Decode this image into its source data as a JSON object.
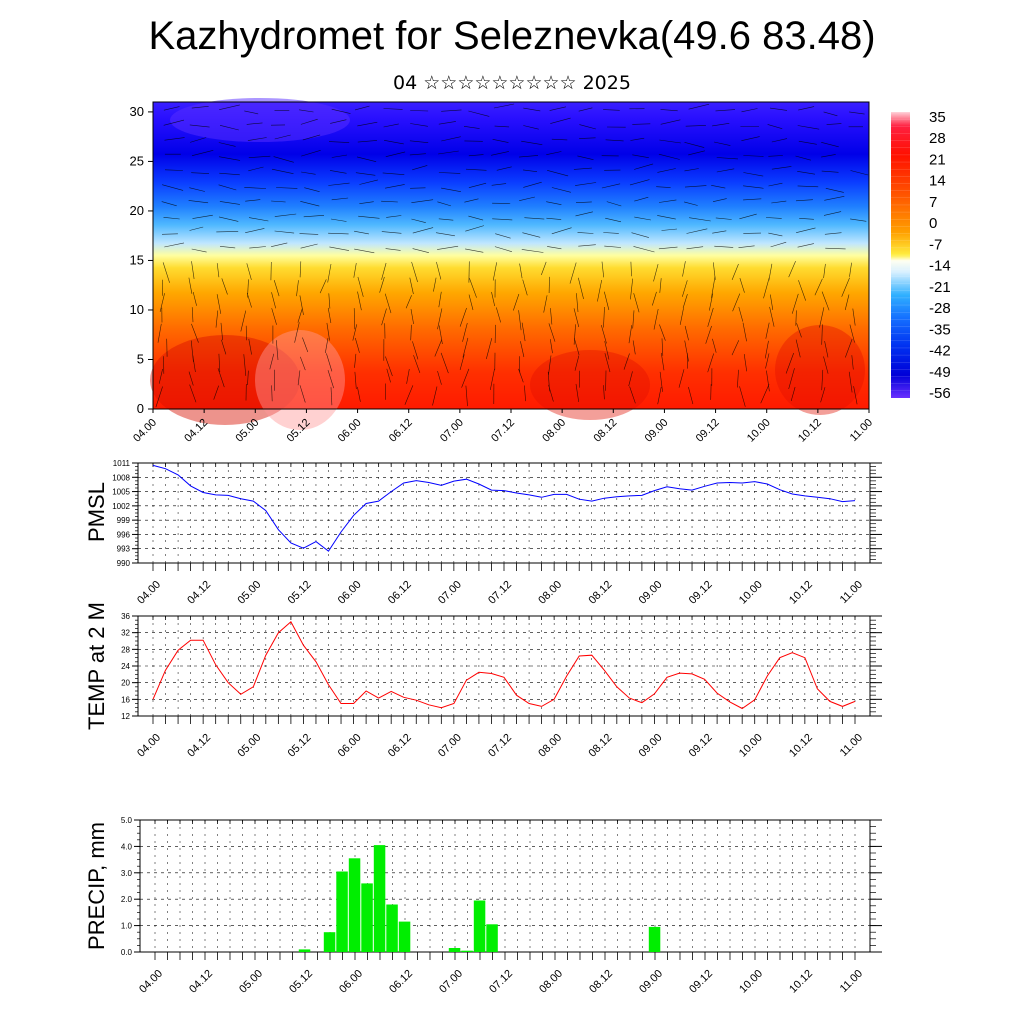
{
  "title": "Kazhydromet for Seleznevka(49.6 83.48)",
  "subtitle": "04 ☆☆☆☆☆☆☆☆☆ 2025",
  "time_labels": [
    "04.00",
    "04.12",
    "05.00",
    "05.12",
    "06.00",
    "06.12",
    "07.00",
    "07.12",
    "08.00",
    "08.12",
    "09.00",
    "09.12",
    "10.00",
    "10.12",
    "11.00"
  ],
  "colorbar": {
    "labels": [
      "35",
      "28",
      "21",
      "14",
      "7",
      "0",
      "-7",
      "-14",
      "-21",
      "-28",
      "-35",
      "-42",
      "-49",
      "-56"
    ]
  },
  "chart_data": [
    {
      "type": "heatmap",
      "title": "Kazhydromet for Seleznevka(49.6 83.48)",
      "subtitle": "04 ☆☆☆☆☆☆☆☆☆ 2025",
      "x": [
        "04.00",
        "04.12",
        "05.00",
        "05.12",
        "06.00",
        "06.12",
        "07.00",
        "07.12",
        "08.00",
        "08.12",
        "09.00",
        "09.12",
        "10.00",
        "10.12",
        "11.00"
      ],
      "yticks": [
        0,
        5,
        10,
        15,
        20,
        25,
        30
      ],
      "ylim": [
        0,
        31
      ],
      "color_levels": [
        35,
        28,
        21,
        14,
        7,
        0,
        -7,
        -14,
        -21,
        -28,
        -35,
        -42,
        -49,
        -56
      ],
      "overlay": "wind barbs"
    },
    {
      "type": "line",
      "ylabel": "PMSL",
      "color": "#0000ff",
      "ylim": [
        990,
        1011
      ],
      "yticks": [
        990,
        993,
        996,
        999,
        1002,
        1005,
        1008,
        1011
      ],
      "x": [
        "04.00",
        "04.03",
        "04.06",
        "04.09",
        "04.12",
        "04.15",
        "04.18",
        "04.21",
        "05.00",
        "05.03",
        "05.06",
        "05.09",
        "05.12",
        "05.15",
        "05.18",
        "05.21",
        "06.00",
        "06.03",
        "06.06",
        "06.09",
        "06.12",
        "06.15",
        "06.18",
        "06.21",
        "07.00",
        "07.03",
        "07.06",
        "07.09",
        "07.12",
        "07.15",
        "07.18",
        "07.21",
        "08.00",
        "08.03",
        "08.06",
        "08.09",
        "08.12",
        "08.15",
        "08.18",
        "08.21",
        "09.00",
        "09.03",
        "09.06",
        "09.09",
        "09.12",
        "09.15",
        "09.18",
        "09.21",
        "10.00",
        "10.03",
        "10.06",
        "10.09",
        "10.12",
        "10.15",
        "10.18",
        "10.21",
        "11.00"
      ],
      "values": [
        1010.5,
        1009.8,
        1008.5,
        1006.2,
        1004.8,
        1004.3,
        1004.2,
        1003.5,
        1003.0,
        1001.0,
        997.0,
        994.2,
        993.1,
        994.5,
        992.5,
        996.5,
        1000.0,
        1002.5,
        1003.0,
        1005.0,
        1006.8,
        1007.3,
        1006.9,
        1006.3,
        1007.2,
        1007.6,
        1006.6,
        1005.3,
        1005.2,
        1004.7,
        1004.3,
        1003.8,
        1004.4,
        1004.4,
        1003.4,
        1003.0,
        1003.6,
        1003.9,
        1004.1,
        1004.2,
        1005.2,
        1006.0,
        1005.6,
        1005.3,
        1006.1,
        1006.8,
        1006.9,
        1006.8,
        1007.1,
        1006.6,
        1005.4,
        1004.5,
        1004.1,
        1003.8,
        1003.5,
        1002.9,
        1003.1
      ]
    },
    {
      "type": "line",
      "ylabel": "TEMP at 2 M",
      "color": "#ff0000",
      "ylim": [
        12,
        36
      ],
      "yticks": [
        12,
        16,
        20,
        24,
        28,
        32,
        36
      ],
      "x": [
        "04.00",
        "04.03",
        "04.06",
        "04.09",
        "04.12",
        "04.15",
        "04.18",
        "04.21",
        "05.00",
        "05.03",
        "05.06",
        "05.09",
        "05.12",
        "05.15",
        "05.18",
        "05.21",
        "06.00",
        "06.03",
        "06.06",
        "06.09",
        "06.12",
        "06.15",
        "06.18",
        "06.21",
        "07.00",
        "07.03",
        "07.06",
        "07.09",
        "07.12",
        "07.15",
        "07.18",
        "07.21",
        "08.00",
        "08.03",
        "08.06",
        "08.09",
        "08.12",
        "08.15",
        "08.18",
        "08.21",
        "09.00",
        "09.03",
        "09.06",
        "09.09",
        "09.12",
        "09.15",
        "09.18",
        "09.21",
        "10.00",
        "10.03",
        "10.06",
        "10.09",
        "10.12",
        "10.15",
        "10.18",
        "10.21",
        "11.00"
      ],
      "values": [
        16.0,
        23.0,
        27.8,
        30.2,
        30.2,
        24.3,
        20.0,
        17.2,
        19.0,
        26.6,
        32.0,
        34.6,
        29.0,
        25.0,
        19.5,
        15.0,
        15.0,
        18.0,
        16.3,
        17.9,
        16.5,
        15.8,
        14.7,
        14.0,
        15.0,
        20.6,
        22.5,
        22.2,
        21.3,
        17.0,
        15.0,
        14.3,
        16.0,
        21.6,
        26.4,
        26.6,
        23.0,
        19.0,
        16.3,
        15.2,
        17.3,
        21.3,
        22.3,
        22.1,
        20.8,
        17.5,
        15.4,
        13.8,
        15.9,
        21.6,
        26.0,
        27.2,
        26.0,
        18.5,
        15.5,
        14.3,
        15.5
      ]
    },
    {
      "type": "bar",
      "ylabel": "PRECIP, mm",
      "color": "#00ee00",
      "ylim": [
        0,
        5
      ],
      "yticks": [
        "0.0",
        "1.0",
        "2.0",
        "3.0",
        "4.0",
        "5.0"
      ],
      "x": [
        "04.00",
        "04.03",
        "04.06",
        "04.09",
        "04.12",
        "04.15",
        "04.18",
        "04.21",
        "05.00",
        "05.03",
        "05.06",
        "05.09",
        "05.12",
        "05.15",
        "05.18",
        "05.21",
        "06.00",
        "06.03",
        "06.06",
        "06.09",
        "06.12",
        "06.15",
        "06.18",
        "06.21",
        "07.00",
        "07.03",
        "07.06",
        "07.09",
        "07.12",
        "07.15",
        "07.18",
        "07.21",
        "08.00",
        "08.03",
        "08.06",
        "08.09",
        "08.12",
        "08.15",
        "08.18",
        "08.21",
        "09.00",
        "09.03",
        "09.06",
        "09.09",
        "09.12",
        "09.15",
        "09.18",
        "09.21",
        "10.00",
        "10.03",
        "10.06",
        "10.09",
        "10.12",
        "10.15",
        "10.18",
        "10.21",
        "11.00"
      ],
      "values": [
        0,
        0,
        0,
        0,
        0,
        0,
        0,
        0,
        0,
        0,
        0,
        0,
        0.1,
        0,
        0.75,
        3.05,
        3.55,
        2.6,
        4.05,
        1.8,
        1.15,
        0,
        0,
        0,
        0.15,
        0.05,
        1.95,
        1.05,
        0,
        0,
        0,
        0,
        0,
        0,
        0,
        0,
        0,
        0,
        0,
        0,
        0.95,
        0,
        0,
        0,
        0,
        0,
        0,
        0,
        0,
        0,
        0,
        0,
        0,
        0,
        0,
        0,
        0
      ]
    }
  ]
}
